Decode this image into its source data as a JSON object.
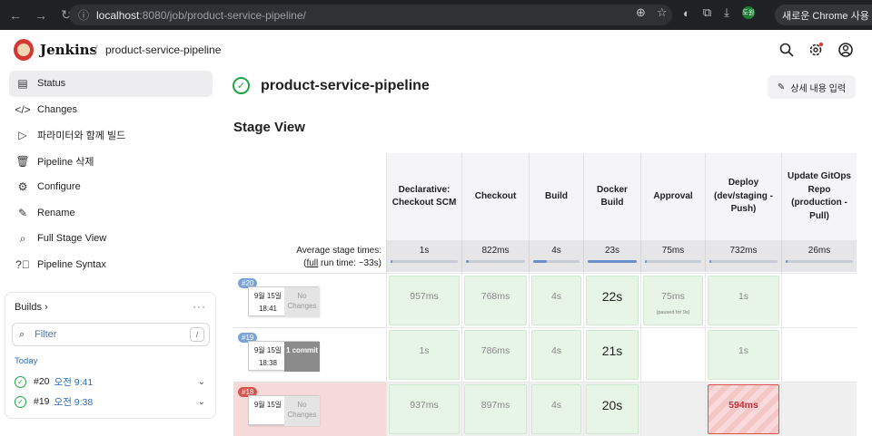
{
  "browser": {
    "url_host": "localhost",
    "url_path": ":8080/job/product-service-pipeline/",
    "promo": "새로운 Chrome 사용 가능",
    "profile": "도원"
  },
  "header": {
    "brand": "Jenkins",
    "separator": "/",
    "breadcrumb": "product-service-pipeline"
  },
  "sidebar": {
    "items": [
      {
        "label": "Status",
        "icon": "status-icon"
      },
      {
        "label": "Changes",
        "icon": "code-icon"
      },
      {
        "label": "파라미터와 함께 빌드",
        "icon": "play-icon"
      },
      {
        "label": "Pipeline 삭제",
        "icon": "trash-icon"
      },
      {
        "label": "Configure",
        "icon": "gear-icon"
      },
      {
        "label": "Rename",
        "icon": "pencil-icon"
      },
      {
        "label": "Full Stage View",
        "icon": "search-icon"
      },
      {
        "label": "Pipeline Syntax",
        "icon": "help-icon"
      }
    ]
  },
  "builds_panel": {
    "title": "Builds",
    "filter_placeholder": "Filter",
    "shortcut": "/",
    "group": "Today",
    "builds": [
      {
        "number": "#20",
        "time": "오전 9:41"
      },
      {
        "number": "#19",
        "time": "오전 9:38"
      }
    ]
  },
  "main": {
    "title": "product-service-pipeline",
    "edit_label": "상세 내용 입력",
    "stage_view_title": "Stage View",
    "avg_label_1": "Average stage times:",
    "avg_label_2_link": "full",
    "avg_label_2_rest": " run time: ~33s)",
    "avg_label_2_open": "(",
    "stages": [
      {
        "name": "Declarative: Checkout SCM",
        "avg": "1s",
        "fill": 0.03
      },
      {
        "name": "Checkout",
        "avg": "822ms",
        "fill": 0.05
      },
      {
        "name": "Build",
        "avg": "4s",
        "fill": 0.3
      },
      {
        "name": "Docker Build",
        "avg": "23s",
        "fill": 1.0
      },
      {
        "name": "Approval",
        "avg": "75ms",
        "fill": 0.02
      },
      {
        "name": "Deploy (dev/staging - Push)",
        "avg": "732ms",
        "fill": 0.03
      },
      {
        "name": "Update GitOps Repo (production - Pull)",
        "avg": "26ms",
        "fill": 0.01
      }
    ],
    "runs": [
      {
        "badge": "#20",
        "badge_color": "#7aa3d6",
        "date": "9월 15일",
        "time": "18:41",
        "changes": "No Changes",
        "changes_type": "none",
        "cells": [
          "957ms",
          "768ms",
          "4s",
          "22s",
          "75ms",
          "1s",
          ""
        ],
        "note": "(paused for 9s)"
      },
      {
        "badge": "#19",
        "badge_color": "#7aa3d6",
        "date": "9월 15일",
        "time": "18:38",
        "changes": "1 commit",
        "changes_type": "commit",
        "cells": [
          "1s",
          "786ms",
          "4s",
          "21s",
          "",
          "1s",
          ""
        ],
        "note": ""
      },
      {
        "badge": "#18",
        "badge_color": "#d9534f",
        "date": "9월 15일",
        "time": "",
        "changes": "No Changes",
        "changes_type": "none",
        "cells": [
          "937ms",
          "897ms",
          "4s",
          "20s",
          "",
          "594ms",
          ""
        ],
        "note": ""
      }
    ]
  }
}
